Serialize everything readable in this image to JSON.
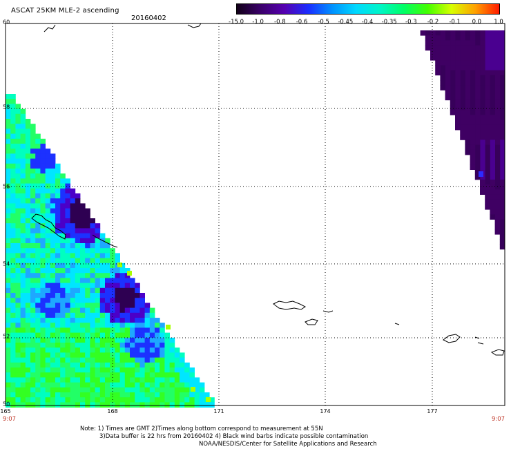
{
  "header": {
    "title": "ASCAT 25KM MLE-2 ascending",
    "date": "20160402"
  },
  "colorbar": {
    "labels": [
      "-15.0",
      "-1.0",
      "-0.8",
      "-0.6",
      "-0.5",
      "-0.45",
      "-0.4",
      "-0.35",
      "-0.3",
      "-0.2",
      "-0.1",
      "0.0",
      "1.0"
    ],
    "colors": [
      "#120018",
      "#3a006a",
      "#5500b0",
      "#1a2dff",
      "#0091ff",
      "#00d9ff",
      "#00f5c8",
      "#00ff66",
      "#44ff00",
      "#d8ff00",
      "#ffa000",
      "#ff1a00"
    ]
  },
  "axes": {
    "lon_ticks": [
      "165",
      "168",
      "171",
      "174",
      "177"
    ],
    "lat_ticks": [
      "60",
      "58",
      "56",
      "54",
      "52",
      "50"
    ],
    "time_left": "9:07",
    "time_right": "9:07"
  },
  "swaths": {
    "left_description_colors": {
      "deep_purple": "#2e0052",
      "purple": "#4b00c8",
      "blue": "#1c31ff",
      "sky": "#1ea8ff",
      "cyan": "#00e6ff",
      "teal": "#00ffc0",
      "green": "#22ff66",
      "lime": "#33ff22",
      "yellowgreen": "#a8ff00"
    },
    "right_color": "#3f0063"
  },
  "notes": {
    "line1": "Note: 1) Times are GMT 2)Times along bottom correspond to measurement at 55N",
    "line2": "3)Data buffer is 22 hrs from 20160402 4) Black wind barbs indicate possible contamination",
    "line3": "NOAA/NESDIS/Center for Satellite Applications and Research"
  }
}
